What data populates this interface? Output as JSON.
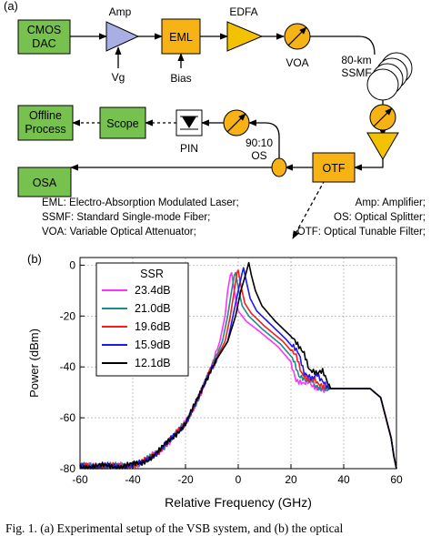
{
  "panel_a": {
    "label": "(a)",
    "blocks": {
      "cmos_dac": [
        "CMOS",
        "DAC"
      ],
      "amp": "Amp",
      "vg": "Vg",
      "eml": "EML",
      "bias": "Bias",
      "edfa": "EDFA",
      "voa": "VOA",
      "fiber": [
        "80-km",
        "SSMF"
      ],
      "otf": "OTF",
      "splitter": [
        "90:10",
        "OS"
      ],
      "pin": "PIN",
      "scope": "Scope",
      "offline": [
        "Offline",
        "Process"
      ],
      "osa": "OSA"
    },
    "legend": {
      "eml": "EML: Electro-Absorption Modulated Laser;",
      "ssmf": "SSMF: Standard Single-mode Fiber;",
      "voa": "VOA: Variable Optical Attenuator;",
      "amp": "Amp: Amplifier;",
      "os": "OS: Optical Splitter;",
      "otf": "OTF: Optical Tunable Filter;"
    },
    "colors": {
      "green": "#77c24f",
      "orange": "#f7b316",
      "blue": "#a9aee5",
      "yellow": "#f2c200"
    }
  },
  "panel_b": {
    "label": "(b)"
  },
  "chart_data": {
    "type": "line",
    "xlabel": "Relative Frequency (GHz)",
    "ylabel": "Power (dBm)",
    "xlim": [
      -60,
      60
    ],
    "ylim": [
      -80,
      3
    ],
    "xticks": [
      -60,
      -40,
      -20,
      0,
      20,
      40,
      60
    ],
    "yticks": [
      0,
      -20,
      -40,
      -60,
      -80
    ],
    "grid": true,
    "legend_title": "SSR",
    "legend_position": "top-left",
    "series": [
      {
        "name": "23.4dB",
        "color": "#ff33ff",
        "x": [
          -60,
          -45,
          -40,
          -37,
          -34,
          -30,
          -25,
          -20,
          -15,
          -10,
          -7,
          -5,
          -4,
          -3,
          -2.5,
          -1.5,
          0,
          3,
          8,
          15,
          20,
          22,
          25,
          27,
          28,
          32,
          40,
          50,
          54,
          56,
          58,
          59,
          60
        ],
        "y": [
          -79,
          -79,
          -78.5,
          -78,
          -76,
          -73,
          -68,
          -62,
          -52,
          -40,
          -30,
          -20,
          -10,
          -4,
          -3,
          -10,
          -18,
          -22,
          -26,
          -32,
          -38,
          -45,
          -47,
          -46,
          -48,
          -48.5,
          -48.5,
          -48.5,
          -52,
          -60,
          -68,
          -75,
          -80
        ]
      },
      {
        "name": "21.0dB",
        "color": "#1a8c8c",
        "x": [
          -60,
          -45,
          -40,
          -37,
          -34,
          -30,
          -25,
          -20,
          -15,
          -10,
          -6,
          -4,
          -2.5,
          -1.5,
          -1,
          0,
          1.5,
          4,
          9,
          16,
          21,
          23,
          26,
          28,
          29,
          33,
          40,
          50,
          54,
          56,
          58,
          59,
          60
        ],
        "y": [
          -79,
          -79,
          -78.5,
          -78,
          -76,
          -73,
          -68,
          -62,
          -52,
          -40,
          -30,
          -20,
          -10,
          -4,
          -3,
          -9,
          -16,
          -20,
          -25,
          -31,
          -37,
          -44,
          -46,
          -45,
          -47,
          -48.5,
          -48.5,
          -48.5,
          -52,
          -60,
          -68,
          -75,
          -80
        ]
      },
      {
        "name": "19.6dB",
        "color": "#ff1a1a",
        "x": [
          -60,
          -45,
          -40,
          -37,
          -34,
          -30,
          -25,
          -20,
          -15,
          -10,
          -5,
          -3,
          -1.5,
          -0.5,
          0,
          1,
          2.5,
          5,
          10,
          17,
          22,
          24,
          27,
          29,
          30,
          33,
          40,
          50,
          54,
          56,
          58,
          59,
          60
        ],
        "y": [
          -79,
          -79,
          -78.5,
          -78,
          -76,
          -73,
          -68,
          -62,
          -52,
          -40,
          -30,
          -20,
          -10,
          -3,
          -2,
          -8,
          -15,
          -19,
          -24,
          -30,
          -36,
          -43,
          -45,
          -44,
          -46,
          -48.5,
          -48.5,
          -48.5,
          -52,
          -60,
          -68,
          -75,
          -80
        ]
      },
      {
        "name": "15.9dB",
        "color": "#1a1aee",
        "x": [
          -60,
          -45,
          -40,
          -37,
          -34,
          -30,
          -25,
          -20,
          -15,
          -10,
          -4,
          -2,
          0,
          1.5,
          2,
          3,
          4.5,
          7,
          12,
          18,
          23,
          25,
          28,
          30,
          31,
          34,
          40,
          50,
          54,
          56,
          58,
          59,
          60
        ],
        "y": [
          -79,
          -79,
          -78.5,
          -78,
          -76,
          -73,
          -68,
          -62,
          -52,
          -40,
          -30,
          -20,
          -10,
          -3,
          -1,
          -6,
          -13,
          -18,
          -23,
          -29,
          -35,
          -42,
          -44,
          -43,
          -45,
          -48.5,
          -48.5,
          -48.5,
          -52,
          -60,
          -68,
          -75,
          -80
        ]
      },
      {
        "name": "12.1dB",
        "color": "#000000",
        "x": [
          -60,
          -45,
          -40,
          -37,
          -34,
          -30,
          -25,
          -20,
          -15,
          -10,
          -4,
          -1,
          1,
          3,
          4,
          5,
          6.5,
          9,
          14,
          20,
          25,
          27,
          30,
          32,
          33,
          35,
          40,
          50,
          54,
          56,
          58,
          59,
          60
        ],
        "y": [
          -79,
          -79,
          -78.5,
          -78,
          -76,
          -73,
          -68,
          -62,
          -52,
          -40,
          -30,
          -20,
          -10,
          -3,
          1,
          -4,
          -10,
          -16,
          -22,
          -28,
          -34,
          -41,
          -43,
          -42,
          -44,
          -48.5,
          -48.5,
          -48.5,
          -52,
          -60,
          -68,
          -75,
          -80
        ]
      }
    ]
  },
  "caption": "Fig. 1.    (a) Experimental setup of the VSB system, and (b) the optical"
}
